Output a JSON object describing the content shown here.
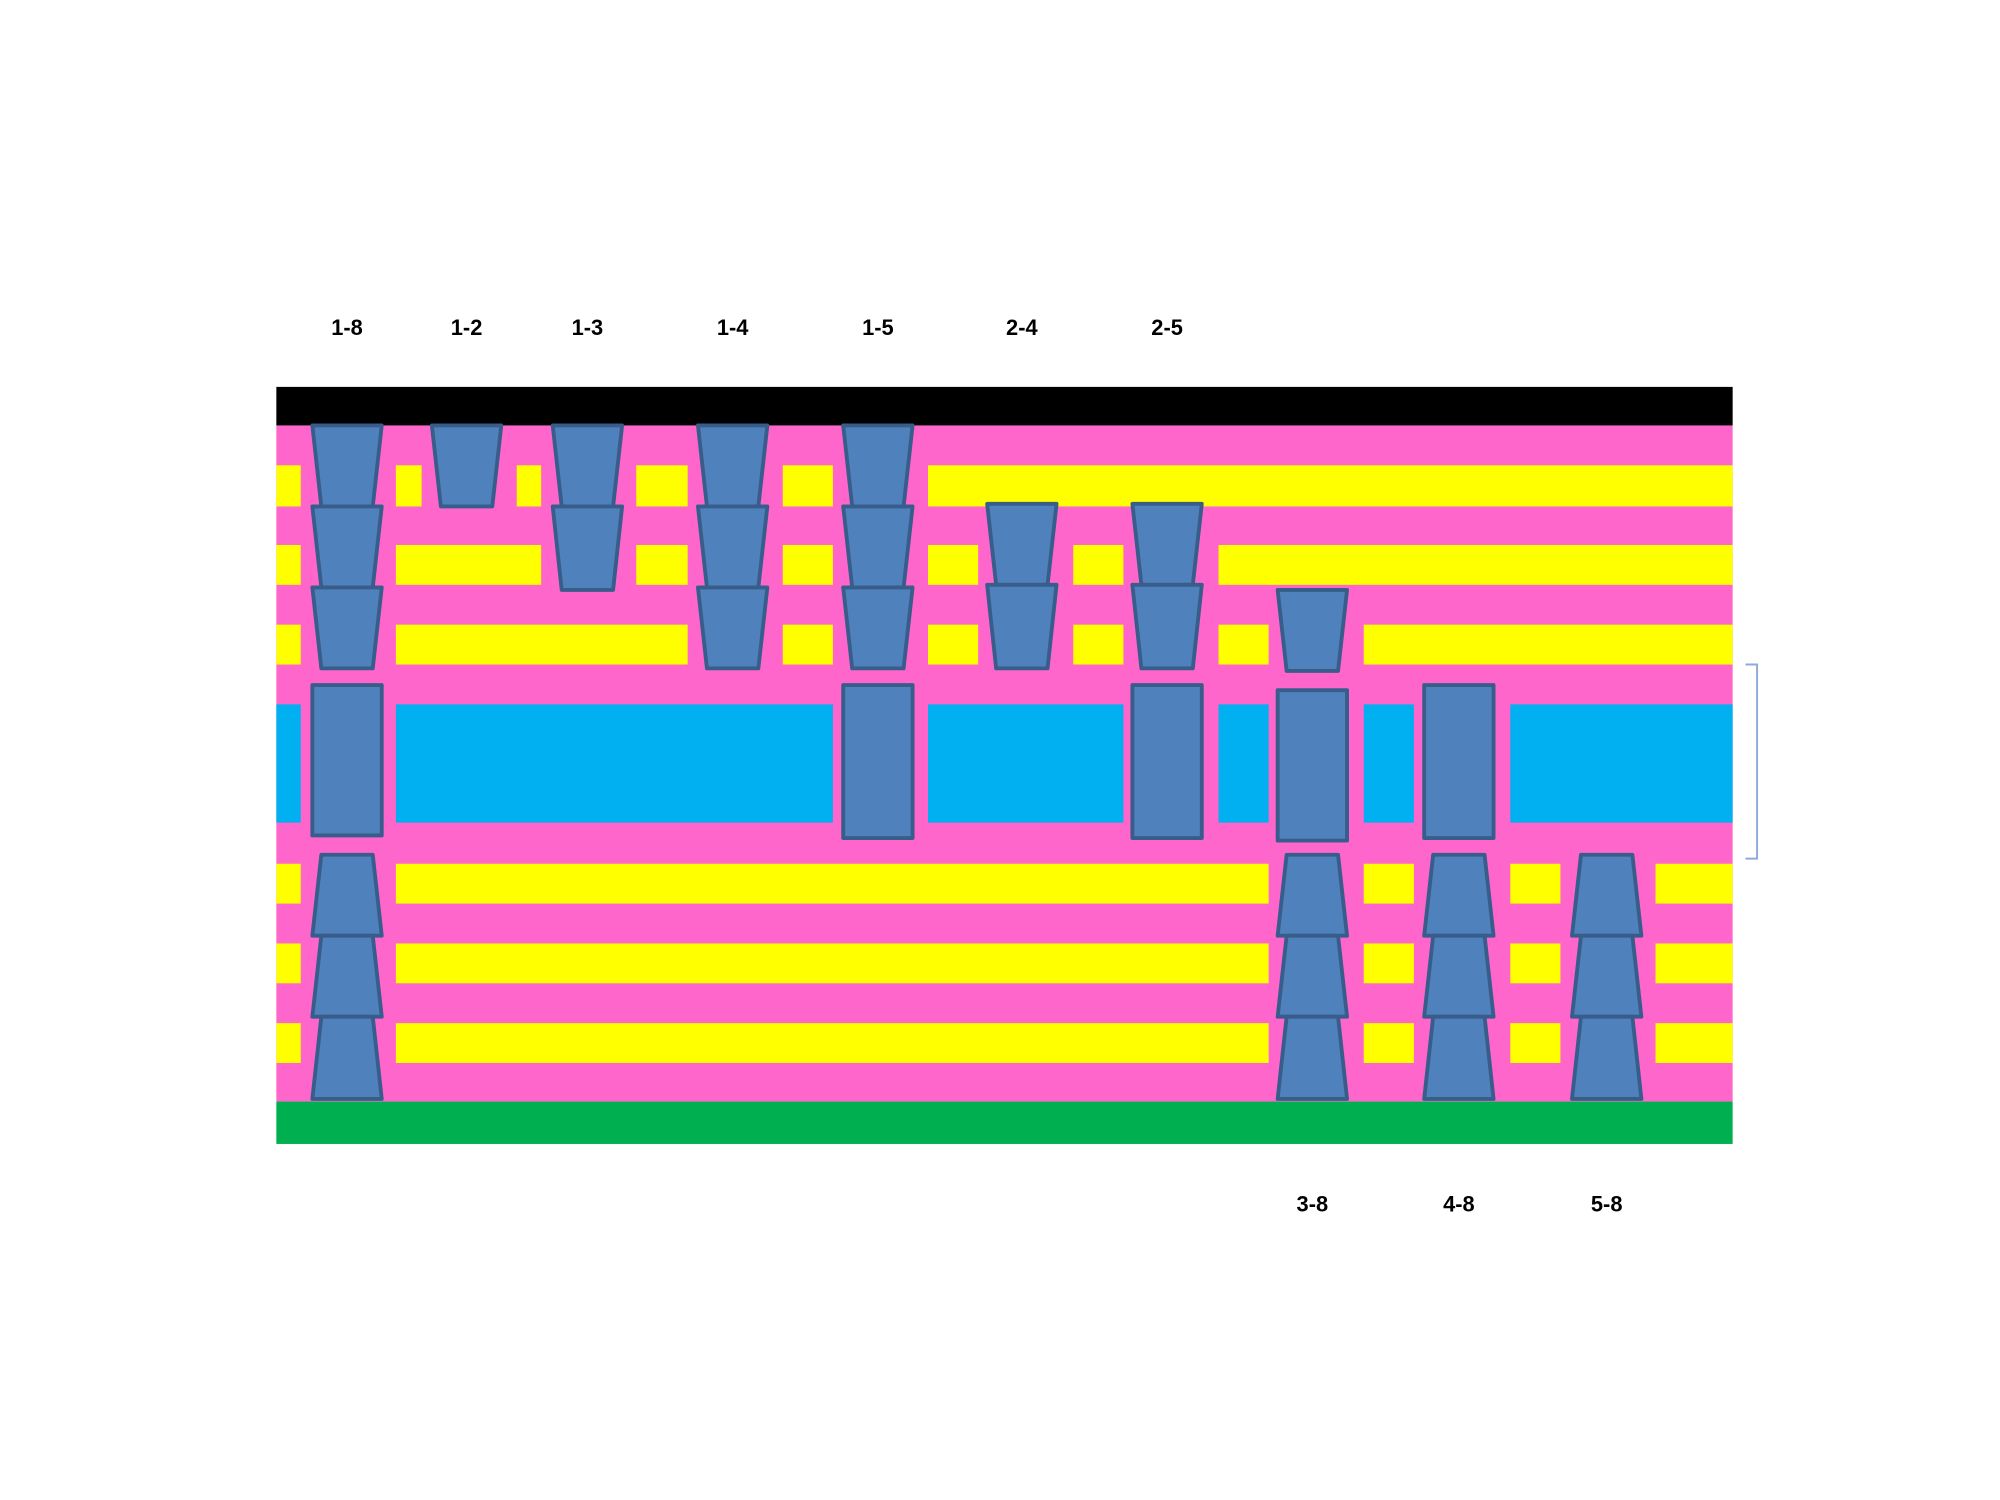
{
  "top_labels": [
    "1-8",
    "1-2",
    "1-3",
    "1-4",
    "1-5",
    "2-4",
    "2-5"
  ],
  "bottom_labels": [
    "3-8",
    "4-8",
    "5-8"
  ]
}
